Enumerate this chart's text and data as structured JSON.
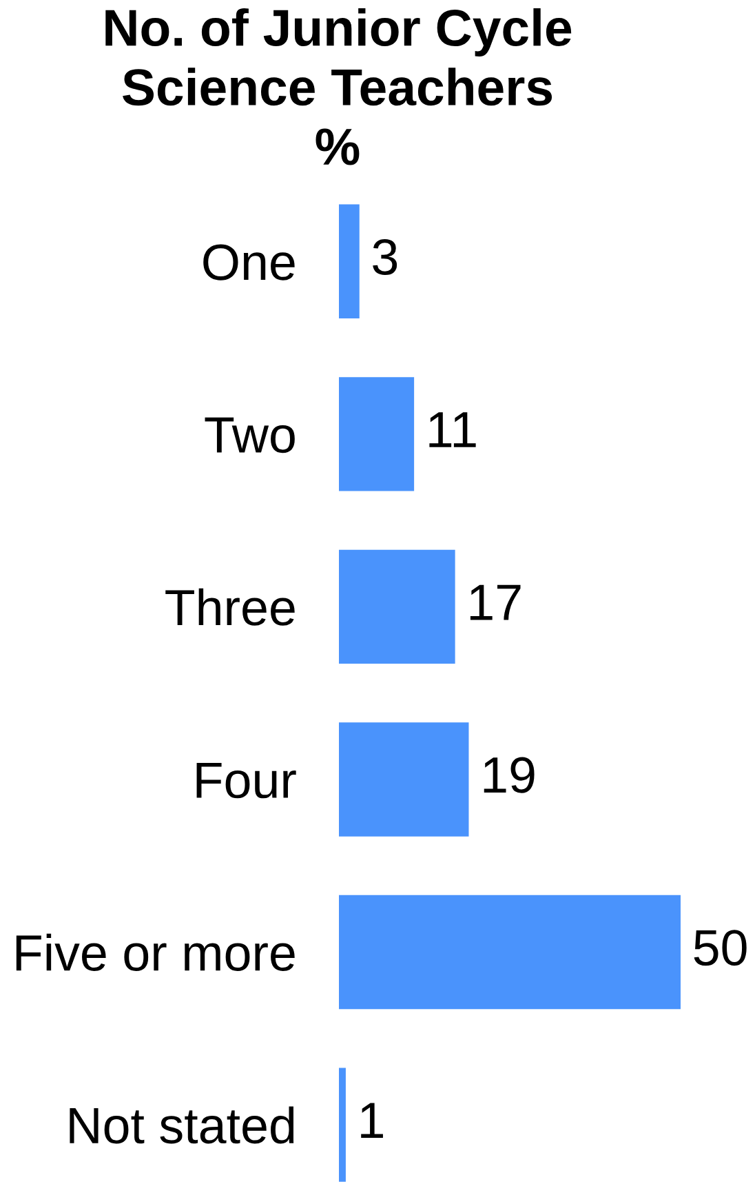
{
  "chart_data": {
    "type": "bar",
    "orientation": "horizontal",
    "title": "No. of Junior Cycle\nScience Teachers\n%",
    "categories": [
      "One",
      "Two",
      "Three",
      "Four",
      "Five or more",
      "Not stated"
    ],
    "values": [
      3,
      11,
      17,
      19,
      50,
      1
    ],
    "color": "#4a93fc",
    "data_labels": true,
    "grid": false,
    "legend": false
  }
}
